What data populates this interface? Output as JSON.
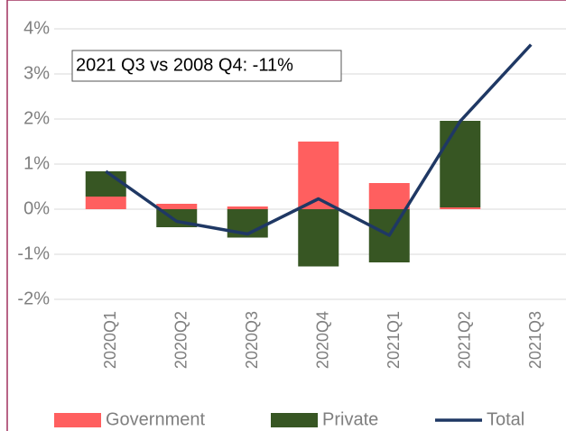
{
  "chart_data": {
    "type": "bar",
    "annotation": "2021 Q3 vs 2008 Q4: -11%",
    "categories": [
      "2020Q1",
      "2020Q2",
      "2020Q3",
      "2020Q4",
      "2021Q1",
      "2021Q2",
      "2021Q3"
    ],
    "series": [
      {
        "name": "Government",
        "color": "#ff5f5f",
        "values": [
          0.28,
          0.12,
          0.06,
          1.5,
          0.58,
          0.04,
          null
        ]
      },
      {
        "name": "Private",
        "color": "#375623",
        "values": [
          0.56,
          -0.4,
          -0.63,
          -1.27,
          -1.18,
          1.92,
          null
        ]
      },
      {
        "name": "Total",
        "type": "line",
        "color": "#1f3864",
        "values": [
          0.84,
          -0.27,
          -0.55,
          0.23,
          -0.58,
          1.95,
          3.65
        ]
      }
    ],
    "ylim": [
      -2,
      4
    ],
    "yticks": [
      {
        "value": -2,
        "label": "-2%"
      },
      {
        "value": -1,
        "label": "-1%"
      },
      {
        "value": 0,
        "label": "0%"
      },
      {
        "value": 1,
        "label": "1%"
      },
      {
        "value": 2,
        "label": "2%"
      },
      {
        "value": 3,
        "label": "3%"
      },
      {
        "value": 4,
        "label": "4%"
      }
    ],
    "grid": true,
    "legend": "bottom"
  }
}
